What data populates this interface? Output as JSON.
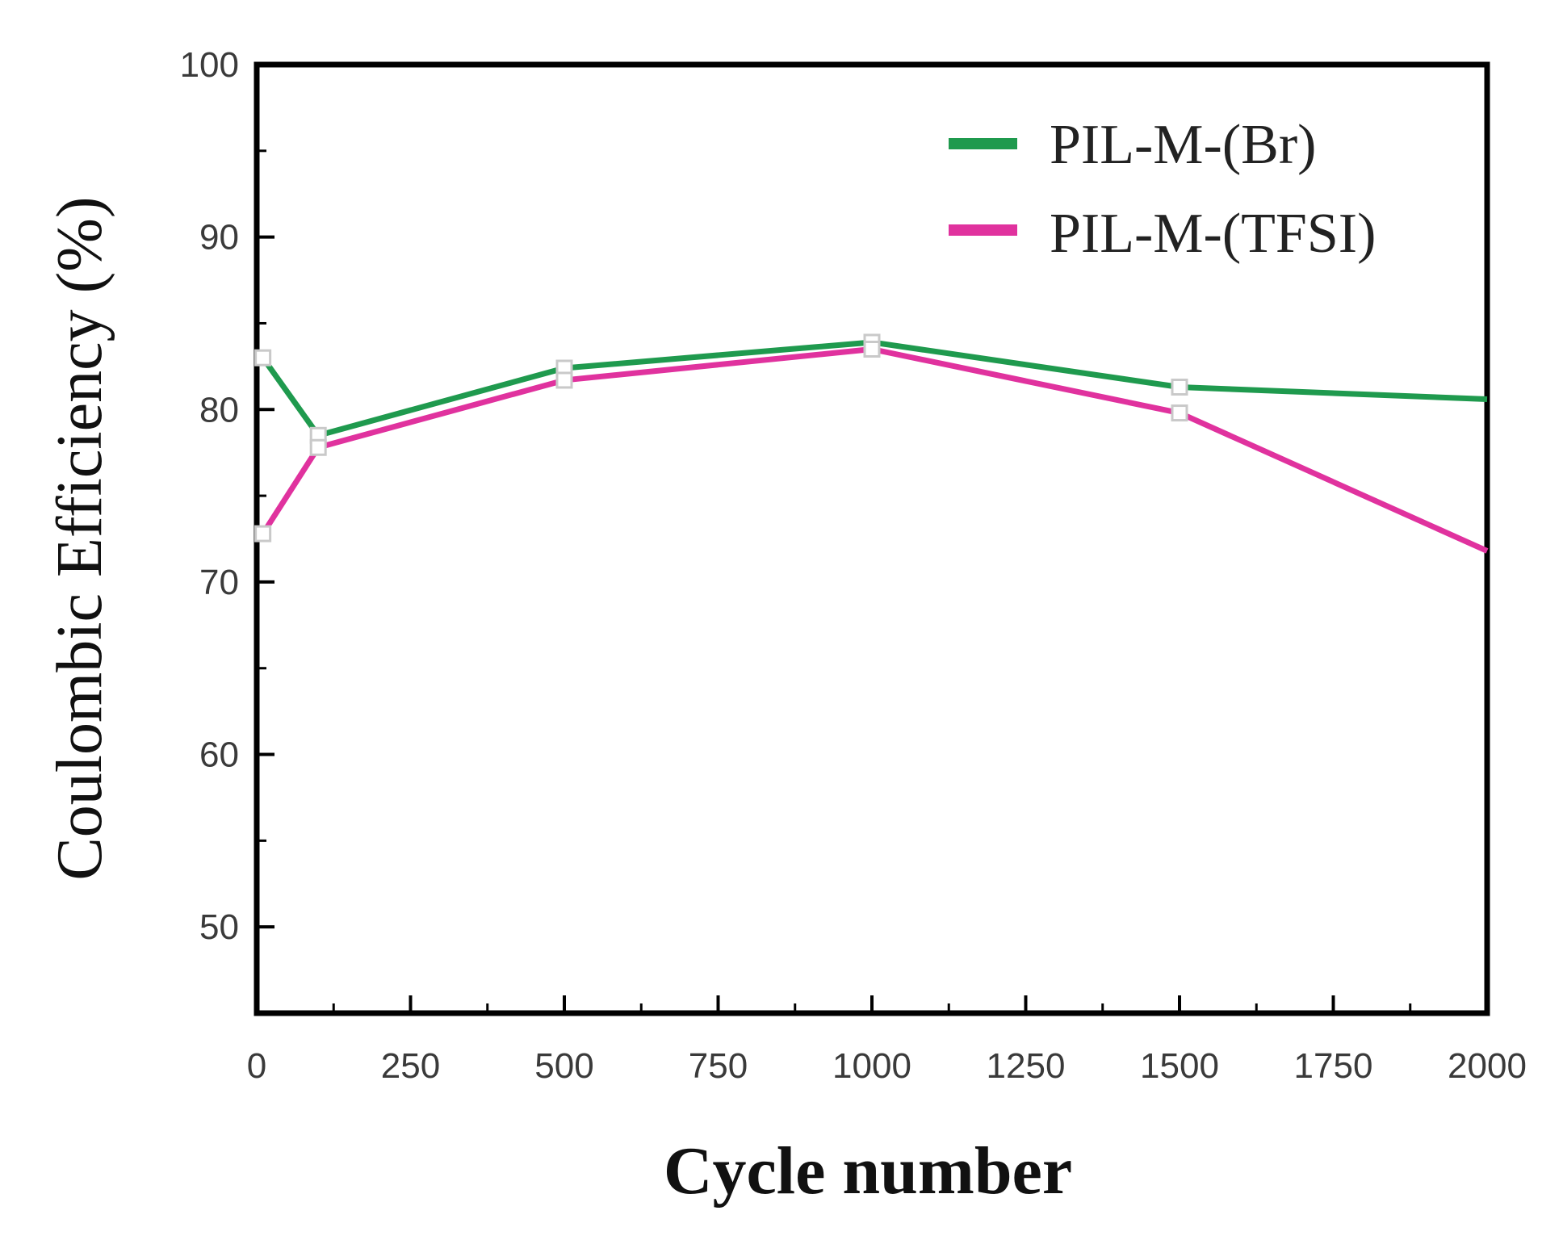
{
  "chart_data": {
    "type": "line",
    "xlabel": "Cycle number",
    "ylabel": "Coulombic Efficiency (%)",
    "xlim": [
      0,
      2000
    ],
    "ylim": [
      45,
      100
    ],
    "x_ticks": [
      0,
      250,
      500,
      750,
      1000,
      1250,
      1500,
      1750,
      2000
    ],
    "x_tick_labels": [
      "0",
      "250",
      "500",
      "750",
      "1000",
      "1250",
      "1500",
      "1750",
      "2000"
    ],
    "y_ticks": [
      50,
      60,
      70,
      80,
      90,
      100
    ],
    "y_tick_labels": [
      "50",
      "60",
      "70",
      "80",
      "90",
      "100"
    ],
    "grid": false,
    "legend_position": "top-right",
    "series": [
      {
        "name": "PIL-M-(Br)",
        "color": "#1f9a4e",
        "x": [
          10,
          100,
          500,
          1000,
          1500,
          2000
        ],
        "y": [
          83.0,
          78.5,
          82.4,
          83.9,
          81.3,
          80.6
        ]
      },
      {
        "name": "PIL-M-(TFSI)",
        "color": "#e0329e",
        "x": [
          10,
          100,
          500,
          1000,
          1500,
          2000
        ],
        "y": [
          72.8,
          77.8,
          81.7,
          83.5,
          79.8,
          71.8
        ]
      }
    ]
  }
}
